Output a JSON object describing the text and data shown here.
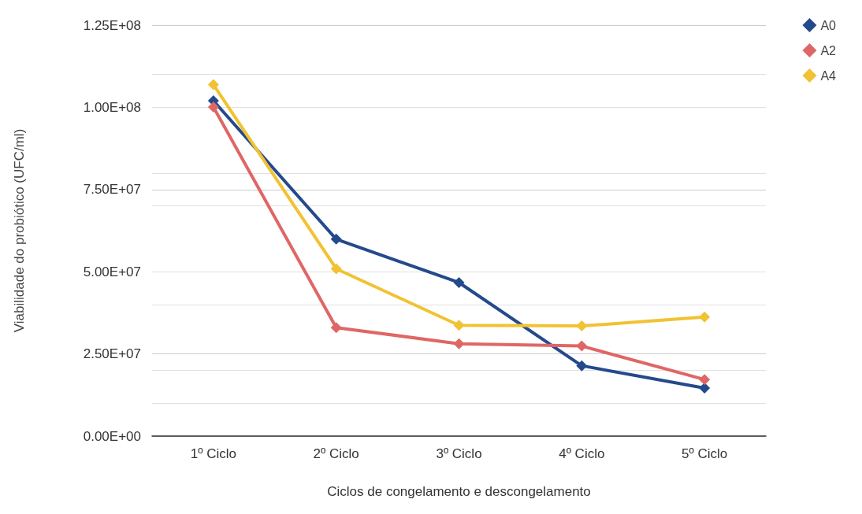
{
  "chart_data": {
    "type": "line",
    "xlabel": "Ciclos de congelamento e descongelamento",
    "ylabel": "Viabilidade do probiótico (UFC/ml)",
    "categories": [
      "1º Ciclo",
      "2º Ciclo",
      "3º Ciclo",
      "4º Ciclo",
      "5º Ciclo"
    ],
    "series": [
      {
        "name": "A0",
        "color": "#244a8c",
        "values": [
          102000000,
          59900000,
          46700000,
          21400000,
          14600000
        ]
      },
      {
        "name": "A2",
        "color": "#e06666",
        "values": [
          100100000,
          33000000,
          28100000,
          27400000,
          17200000
        ]
      },
      {
        "name": "A4",
        "color": "#f1c232",
        "values": [
          106900000,
          50900000,
          33700000,
          33500000,
          36200000
        ]
      }
    ],
    "ylim": [
      0,
      125000000
    ],
    "yticks": [
      {
        "value": 0,
        "label": "0.00E+00"
      },
      {
        "value": 25000000,
        "label": "2.50E+07"
      },
      {
        "value": 50000000,
        "label": "5.00E+07"
      },
      {
        "value": 75000000,
        "label": "7.50E+07"
      },
      {
        "value": 100000000,
        "label": "1.00E+08"
      },
      {
        "value": 125000000,
        "label": "1.25E+08"
      }
    ],
    "grid": "y",
    "legend": "top right",
    "marker": "diamond",
    "line_style": "solid"
  }
}
